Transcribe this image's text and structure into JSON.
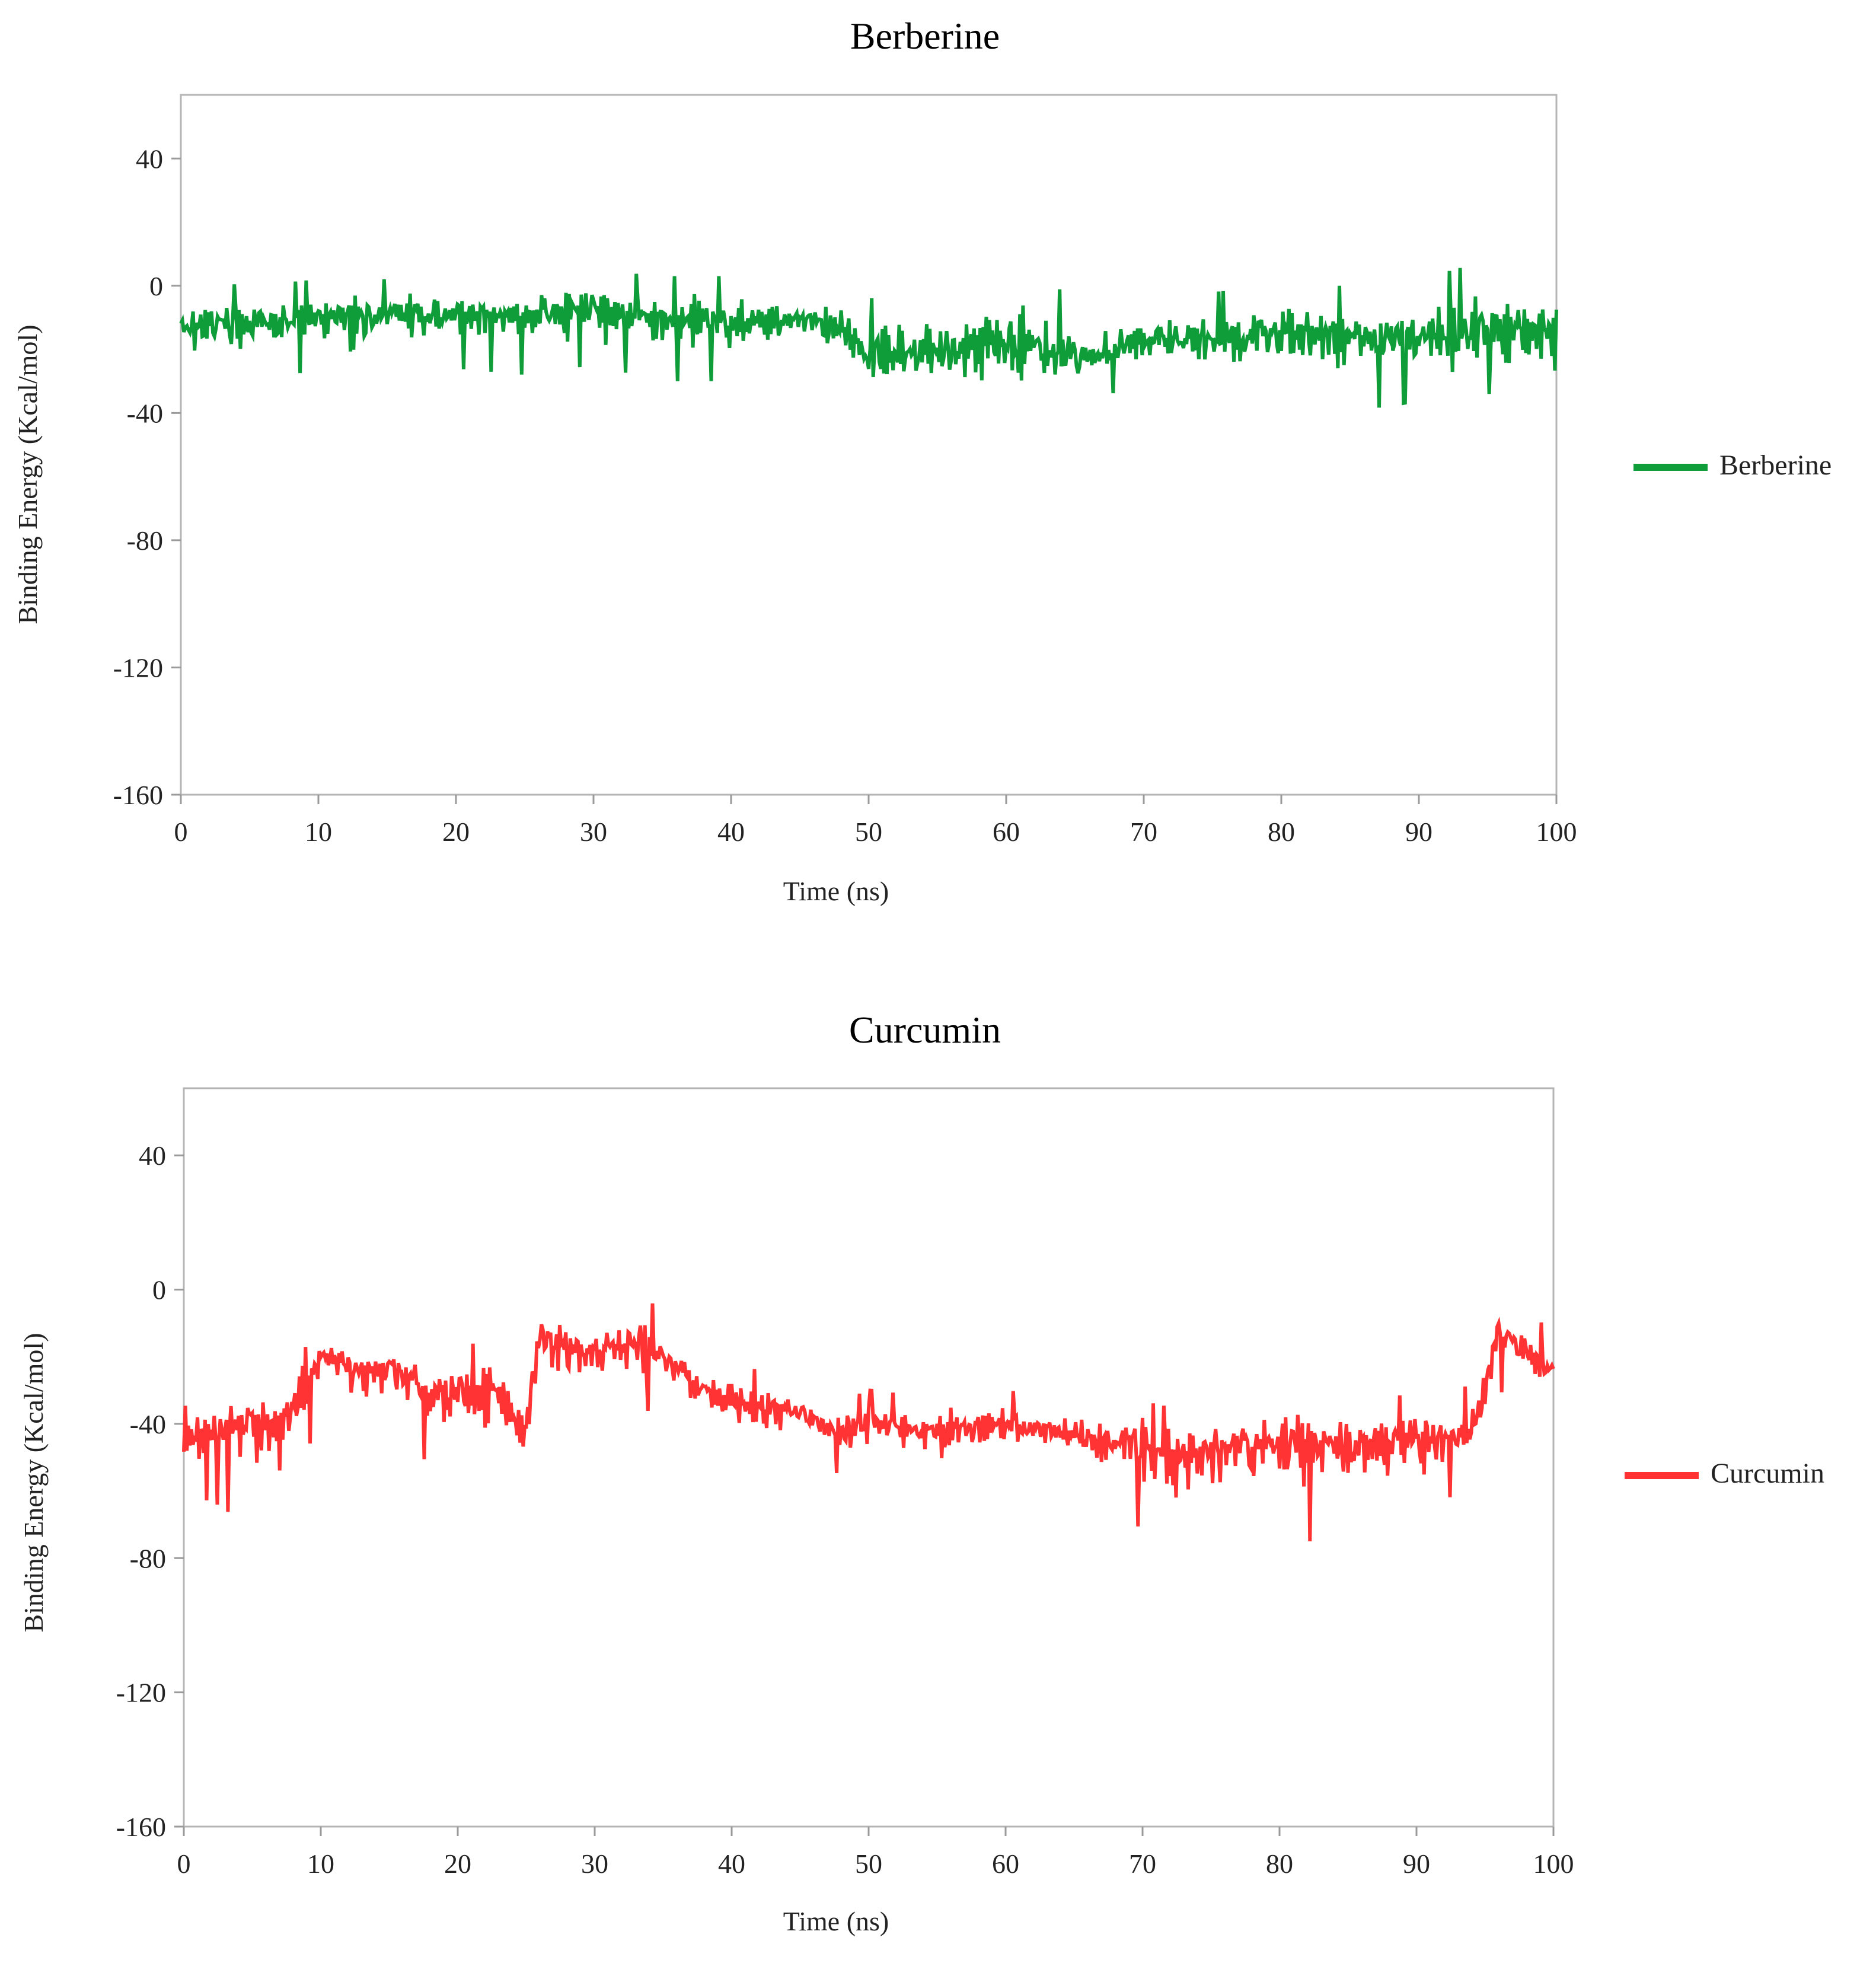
{
  "chart_data": [
    {
      "type": "line",
      "title": "Berberine",
      "xlabel": "Time (ns)",
      "ylabel": "Binding Energy (Kcal/mol)",
      "xlim": [
        0,
        100
      ],
      "ylim": [
        -160,
        60
      ],
      "xticks": [
        0,
        10,
        20,
        30,
        40,
        50,
        60,
        70,
        80,
        90,
        100
      ],
      "yticks": [
        40,
        0,
        -40,
        -80,
        -120,
        -160
      ],
      "grid": false,
      "legend_position": "right",
      "series": [
        {
          "name": "Berberine",
          "color": "#0f9d3a",
          "x": [
            0,
            5,
            10,
            15,
            20,
            25,
            30,
            35,
            40,
            45,
            48,
            50,
            55,
            60,
            62,
            65,
            70,
            75,
            80,
            85,
            90,
            95,
            100
          ],
          "y": [
            -12,
            -12,
            -10,
            -9,
            -9,
            -9,
            -7,
            -10,
            -11,
            -10,
            -13,
            -22,
            -20,
            -18,
            -17,
            -24,
            -16,
            -17,
            -14,
            -16,
            -16,
            -15,
            -14
          ],
          "min": [
            -30,
            -26,
            -28,
            -26,
            -26,
            -28,
            -25,
            -30,
            -30,
            -26,
            -30,
            -43,
            -39,
            -38,
            -46,
            -36,
            -32,
            -36,
            -36,
            -40,
            -36,
            -34,
            -34
          ],
          "max": [
            2,
            0,
            2,
            2,
            3,
            3,
            5,
            3,
            3,
            0,
            -2,
            -4,
            -3,
            7,
            2,
            -3,
            -4,
            -2,
            0,
            0,
            2,
            8,
            2
          ]
        }
      ]
    },
    {
      "type": "line",
      "title": "Curcumin",
      "xlabel": "Time (ns)",
      "ylabel": "Binding Energy (Kcal/mol)",
      "xlim": [
        0,
        100
      ],
      "ylim": [
        -160,
        60
      ],
      "xticks": [
        0,
        10,
        20,
        30,
        40,
        50,
        60,
        70,
        80,
        90,
        100
      ],
      "yticks": [
        40,
        0,
        -40,
        -80,
        -120,
        -160
      ],
      "grid": false,
      "legend_position": "right",
      "series": [
        {
          "name": "Curcumin",
          "color": "#ff3333",
          "x": [
            0,
            3,
            5,
            7,
            8,
            10,
            13,
            15,
            18,
            20,
            23,
            24,
            25,
            26,
            28,
            30,
            33,
            35,
            38,
            40,
            43,
            45,
            48,
            50,
            55,
            60,
            65,
            67,
            70,
            71,
            75,
            78,
            80,
            85,
            90,
            93,
            94,
            95,
            96,
            98,
            100
          ],
          "y": [
            -45,
            -40,
            -38,
            -40,
            -35,
            -20,
            -25,
            -22,
            -32,
            -30,
            -30,
            -38,
            -43,
            -12,
            -18,
            -18,
            -15,
            -20,
            -30,
            -33,
            -35,
            -37,
            -42,
            -40,
            -42,
            -40,
            -43,
            -45,
            -45,
            -50,
            -48,
            -45,
            -45,
            -45,
            -45,
            -42,
            -42,
            -30,
            -10,
            -18,
            -25
          ],
          "min": [
            -60,
            -65,
            -76,
            -70,
            -55,
            -40,
            -45,
            -42,
            -52,
            -55,
            -55,
            -55,
            -55,
            -35,
            -35,
            -35,
            -33,
            -40,
            -45,
            -48,
            -50,
            -52,
            -55,
            -52,
            -55,
            -55,
            -58,
            -75,
            -70,
            -78,
            -75,
            -72,
            -75,
            -75,
            -70,
            -60,
            -60,
            -48,
            -30,
            -35,
            -40
          ],
          "max": [
            -35,
            -25,
            -28,
            -25,
            -15,
            -8,
            -10,
            -10,
            -15,
            -15,
            -18,
            -22,
            -28,
            2,
            -5,
            -5,
            2,
            -8,
            -20,
            -22,
            -25,
            -28,
            -33,
            -30,
            -32,
            -30,
            -32,
            -30,
            -30,
            -35,
            -32,
            -30,
            -30,
            -30,
            -32,
            -30,
            -28,
            -15,
            -7,
            -7,
            -12
          ]
        }
      ]
    }
  ]
}
